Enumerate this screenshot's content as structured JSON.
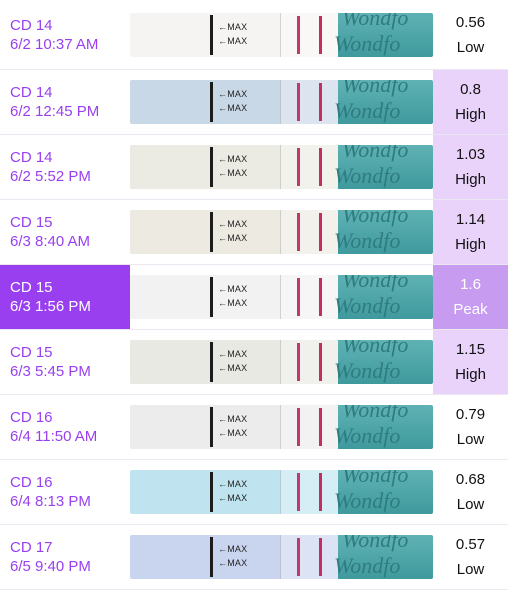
{
  "brand": "Wondfo",
  "max_label": "←MAX",
  "colors": {
    "accent": "#9a3ff0",
    "high_bg": "#ead3fb",
    "peak_bg": "#c79cf0"
  },
  "entries": [
    {
      "cd": "CD 14",
      "datetime": "6/2 10:37 AM",
      "value": "0.56",
      "level": "Low",
      "strip_color": "#f6f4f2"
    },
    {
      "cd": "CD 14",
      "datetime": "6/2 12:45 PM",
      "value": "0.8",
      "level": "High",
      "strip_color": "#c9d8e6"
    },
    {
      "cd": "CD 14",
      "datetime": "6/2 5:52 PM",
      "value": "1.03",
      "level": "High",
      "strip_color": "#ecebe3"
    },
    {
      "cd": "CD 15",
      "datetime": "6/3 8:40 AM",
      "value": "1.14",
      "level": "High",
      "strip_color": "#eceae1"
    },
    {
      "cd": "CD 15",
      "datetime": "6/3 1:56 PM",
      "value": "1.6",
      "level": "Peak",
      "strip_color": "#f2f2f2"
    },
    {
      "cd": "CD 15",
      "datetime": "6/3 5:45 PM",
      "value": "1.15",
      "level": "High",
      "strip_color": "#e9e9e3"
    },
    {
      "cd": "CD 16",
      "datetime": "6/4 11:50 AM",
      "value": "0.79",
      "level": "Low",
      "strip_color": "#ececec"
    },
    {
      "cd": "CD 16",
      "datetime": "6/4 8:13 PM",
      "value": "0.68",
      "level": "Low",
      "strip_color": "#bfe4ef"
    },
    {
      "cd": "CD 17",
      "datetime": "6/5 9:40 PM",
      "value": "0.57",
      "level": "Low",
      "strip_color": "#c9d4ee"
    }
  ]
}
